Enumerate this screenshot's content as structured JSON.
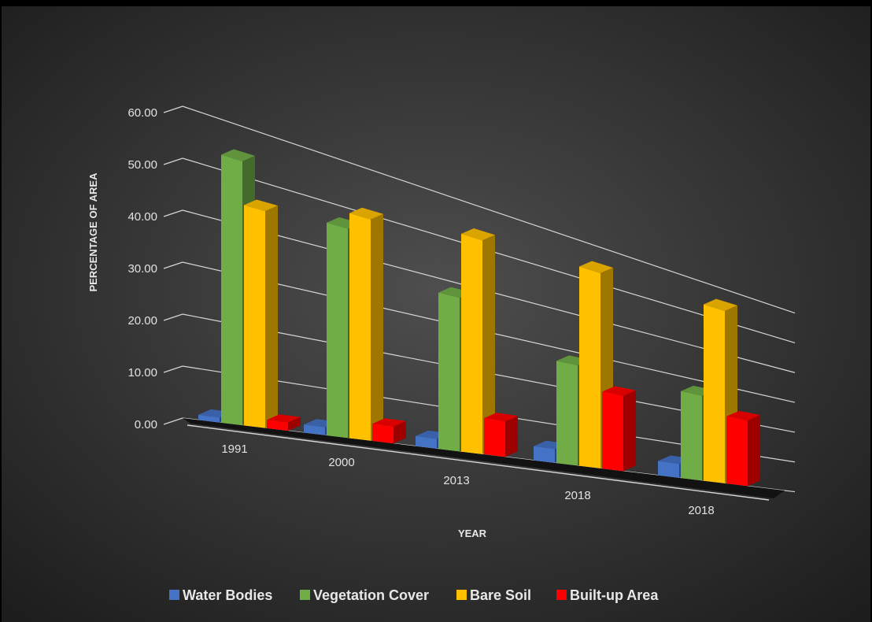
{
  "chart_data": {
    "type": "bar",
    "title": "",
    "xlabel": "YEAR",
    "ylabel": "PERCENTAGE OF AREA",
    "ylim": [
      0,
      60
    ],
    "yticks": [
      "0.00",
      "10.00",
      "20.00",
      "30.00",
      "40.00",
      "50.00",
      "60.00"
    ],
    "categories": [
      "1991",
      "2000",
      "2013",
      "2018",
      "2018"
    ],
    "series": [
      {
        "name": "Water Bodies",
        "color": "#4472c4",
        "values": [
          1.0,
          1.7,
          2.3,
          3.6,
          4.1
        ]
      },
      {
        "name": "Vegetation Cover",
        "color": "#70ad47",
        "values": [
          53.0,
          45.5,
          36.6,
          26.6,
          25.6
        ]
      },
      {
        "name": "Bare Soil",
        "color": "#ffc000",
        "values": [
          44.3,
          49.0,
          52.0,
          53.0,
          53.3
        ]
      },
      {
        "name": "Built-up Area",
        "color": "#ff0000",
        "values": [
          1.7,
          3.8,
          8.8,
          20.9,
          20.8
        ]
      }
    ],
    "legend": "bottom",
    "grid": true,
    "projection": "3d-perspective"
  }
}
